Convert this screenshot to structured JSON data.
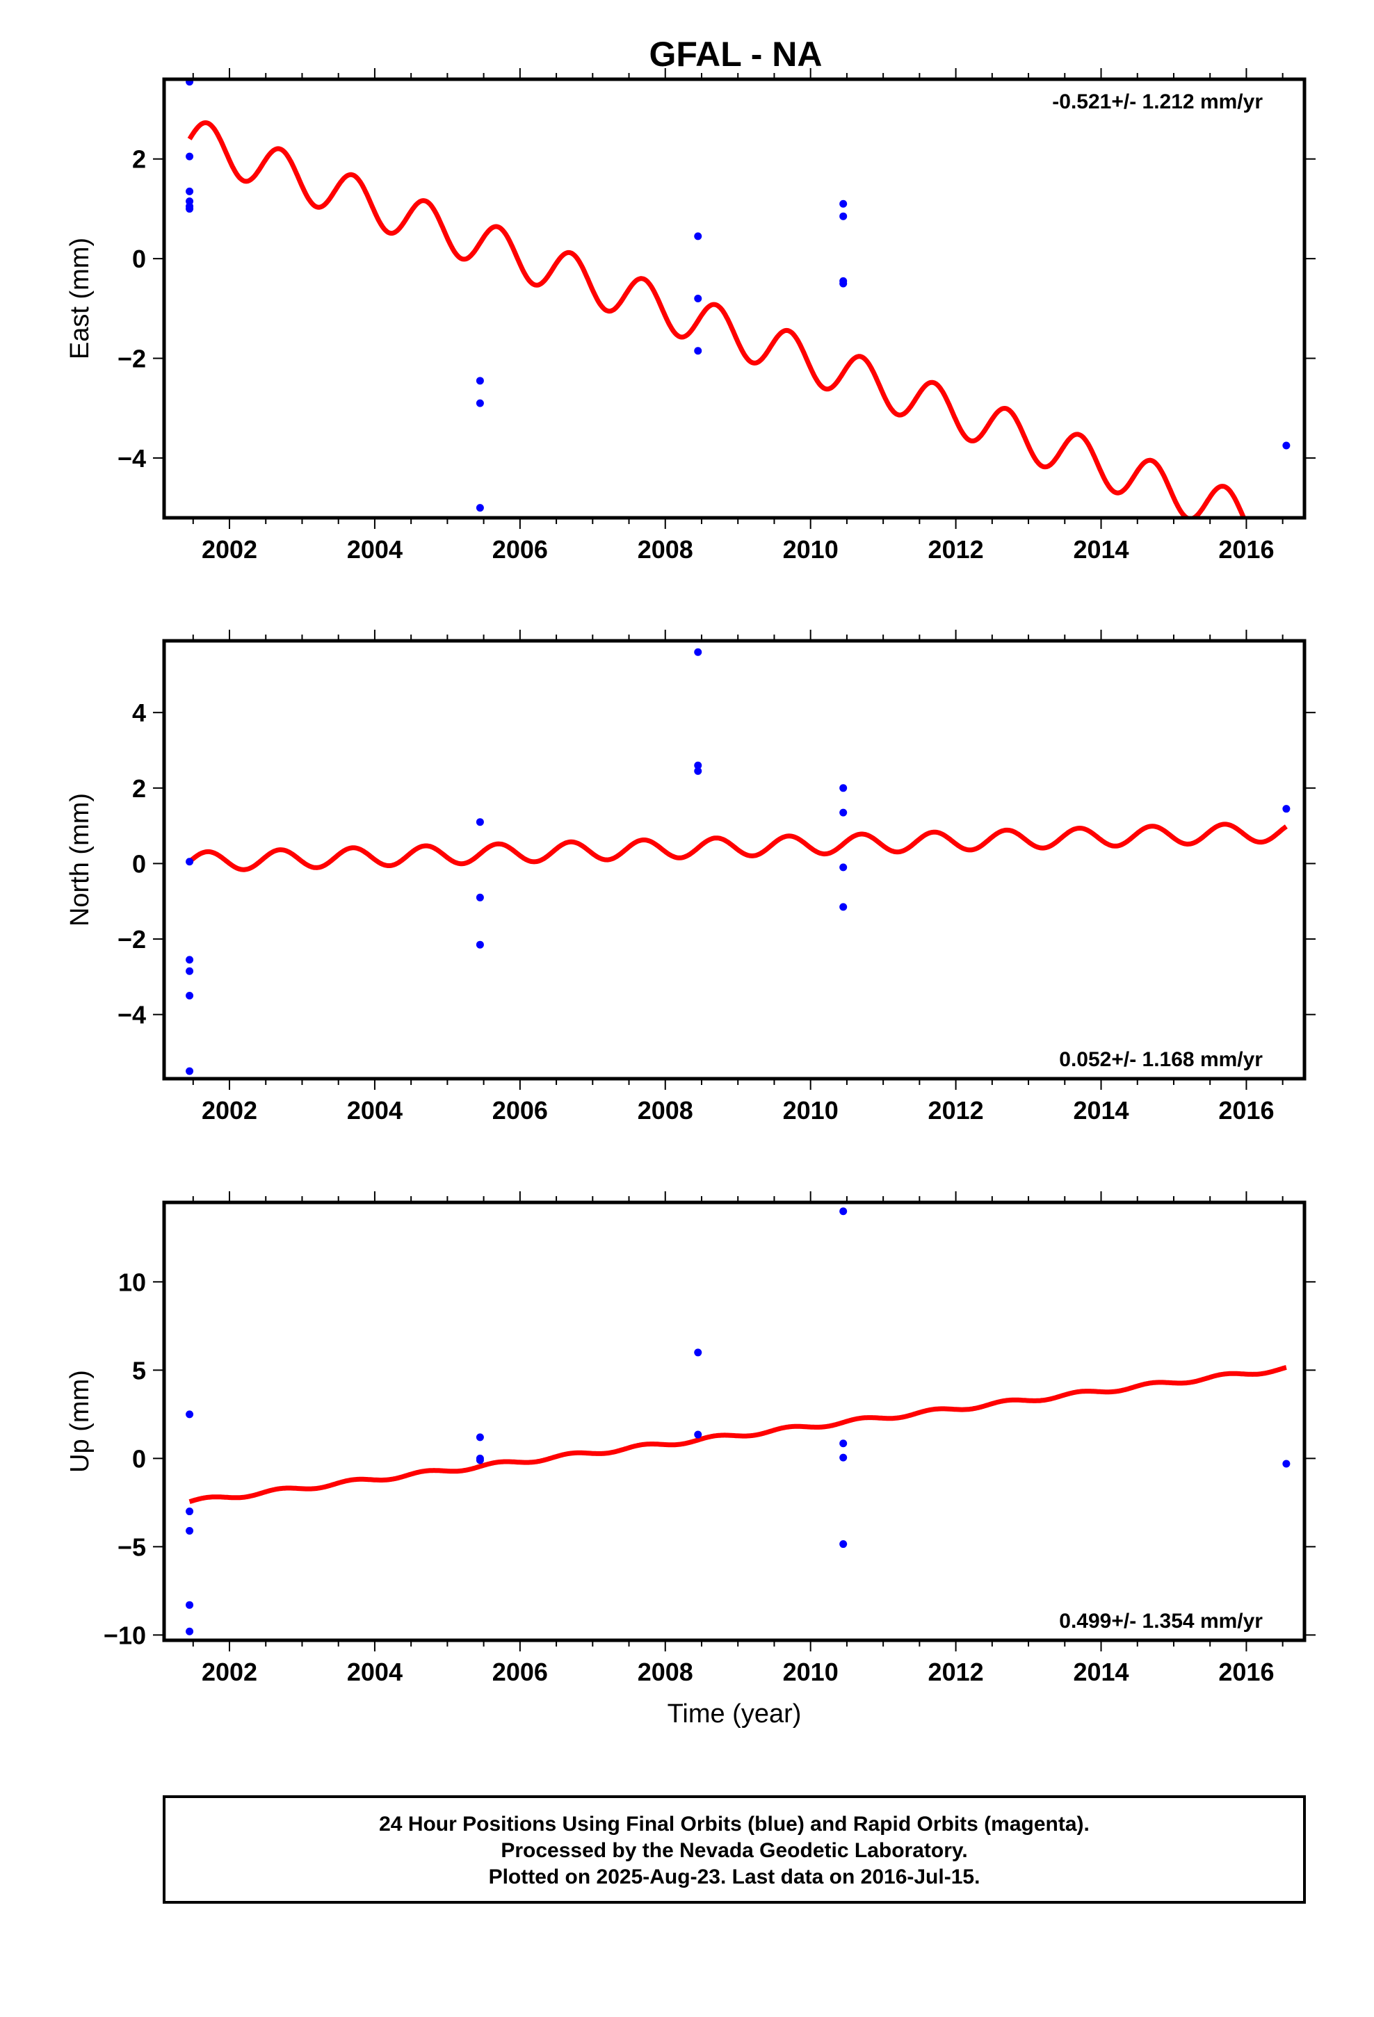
{
  "title": "GFAL - NA",
  "footer": {
    "line1": "24 Hour Positions Using Final Orbits (blue) and Rapid Orbits (magenta).",
    "line2": "Processed by the Nevada Geodetic Laboratory.",
    "line3": "Plotted on 2025-Aug-23. Last data on 2016-Jul-15."
  },
  "colors": {
    "points": "#0000ff",
    "model": "#ff0000",
    "frame": "#000000"
  },
  "chart_data": [
    {
      "type": "scatter",
      "ylabel": "East (mm)",
      "xlabel": "",
      "xlim": [
        2001.1,
        2016.8
      ],
      "ylim": [
        -5.2,
        3.6
      ],
      "xticks": [
        2002,
        2004,
        2006,
        2008,
        2010,
        2012,
        2014,
        2016
      ],
      "yticks": [
        -4,
        -2,
        0,
        2
      ],
      "rate": "-0.521+/- 1.212 mm/yr",
      "rate_position": "top-right",
      "points": {
        "x": [
          2001.45,
          2001.45,
          2001.45,
          2001.45,
          2001.45,
          2001.45,
          2005.45,
          2005.45,
          2005.45,
          2008.45,
          2008.45,
          2008.45,
          2010.45,
          2010.45,
          2010.45,
          2010.45,
          2016.55
        ],
        "y": [
          3.55,
          2.05,
          1.35,
          1.15,
          1.0,
          1.05,
          -2.45,
          -2.9,
          -5.0,
          0.45,
          -0.8,
          -1.85,
          1.1,
          0.85,
          -0.45,
          -0.5,
          -3.75
        ]
      },
      "model": {
        "start": 2001.45,
        "end": 2016.55,
        "offset_at_start": 2.4,
        "rate": -0.521,
        "annual_amp": 0.45,
        "annual_phase": 0.0,
        "semiannual_amp": 0.0
      }
    },
    {
      "type": "scatter",
      "ylabel": "North (mm)",
      "xlabel": "",
      "xlim": [
        2001.1,
        2016.8
      ],
      "ylim": [
        -5.7,
        5.9
      ],
      "xticks": [
        2002,
        2004,
        2006,
        2008,
        2010,
        2012,
        2014,
        2016
      ],
      "yticks": [
        -4,
        -2,
        0,
        2,
        4
      ],
      "rate": "0.052+/- 1.168 mm/yr",
      "rate_position": "bottom-right",
      "points": {
        "x": [
          2001.45,
          2001.45,
          2001.45,
          2001.45,
          2001.45,
          2005.45,
          2005.45,
          2005.45,
          2008.45,
          2008.45,
          2008.45,
          2010.45,
          2010.45,
          2010.45,
          2010.45,
          2016.55
        ],
        "y": [
          0.05,
          -2.55,
          -2.85,
          -3.5,
          -5.5,
          1.1,
          -0.9,
          -2.15,
          5.6,
          2.6,
          2.45,
          2.0,
          1.35,
          -0.1,
          -1.15,
          1.45
        ]
      },
      "model": {
        "start": 2001.45,
        "end": 2016.55,
        "offset_at_start": 0.05,
        "rate": 0.052,
        "annual_amp": 0.25,
        "annual_phase": 0.0,
        "semiannual_amp": 0.0
      }
    },
    {
      "type": "scatter",
      "ylabel": "Up (mm)",
      "xlabel": "Time (year)",
      "xlim": [
        2001.1,
        2016.8
      ],
      "ylim": [
        -10.3,
        14.5
      ],
      "xticks": [
        2002,
        2004,
        2006,
        2008,
        2010,
        2012,
        2014,
        2016
      ],
      "yticks": [
        -10,
        -5,
        0,
        5,
        10
      ],
      "rate": "0.499+/- 1.354 mm/yr",
      "rate_position": "bottom-right",
      "points": {
        "x": [
          2001.45,
          2001.45,
          2001.45,
          2001.45,
          2001.45,
          2005.45,
          2005.45,
          2005.45,
          2008.45,
          2008.45,
          2010.45,
          2010.45,
          2010.45,
          2010.45,
          2016.55
        ],
        "y": [
          2.5,
          -3.0,
          -4.1,
          -8.3,
          -9.8,
          1.2,
          0.0,
          -0.1,
          6.0,
          1.35,
          14.0,
          0.85,
          0.05,
          -4.85,
          -0.3
        ]
      },
      "model": {
        "start": 2001.45,
        "end": 2016.55,
        "offset_at_start": -2.45,
        "rate": 0.499,
        "annual_amp": 0.12,
        "annual_phase": 0.0,
        "semiannual_amp": 0.0
      }
    }
  ]
}
